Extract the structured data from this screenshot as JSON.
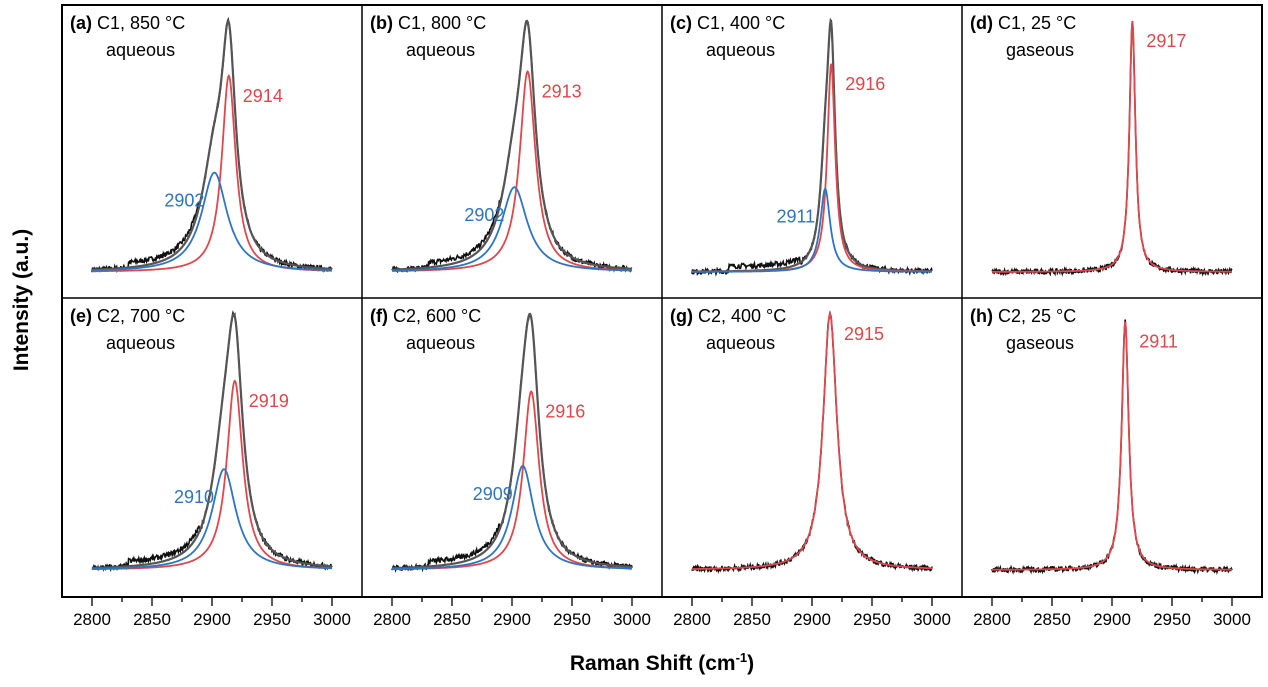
{
  "chart_data": [
    {
      "type": "line",
      "panel": "(a)",
      "title": "C1, 850 °C",
      "subtitle": "aqueous",
      "xlim": [
        2800,
        3000
      ],
      "components": [
        {
          "center": 2914,
          "label": "2914",
          "color": "#e0474c",
          "amplitude": 0.77,
          "fwhm": 14
        },
        {
          "center": 2902,
          "label": "2902",
          "color": "#2f74c0",
          "amplitude": 0.39,
          "fwhm": 26
        }
      ]
    },
    {
      "type": "line",
      "panel": "(b)",
      "title": "C1, 800 °C",
      "subtitle": "aqueous",
      "xlim": [
        2800,
        3000
      ],
      "components": [
        {
          "center": 2913,
          "label": "2913",
          "color": "#e0474c",
          "amplitude": 0.78,
          "fwhm": 16
        },
        {
          "center": 2902,
          "label": "2902",
          "color": "#2f74c0",
          "amplitude": 0.33,
          "fwhm": 26
        }
      ]
    },
    {
      "type": "line",
      "panel": "(c)",
      "title": "C1, 400 °C",
      "subtitle": "aqueous",
      "xlim": [
        2800,
        3000
      ],
      "components": [
        {
          "center": 2916,
          "label": "2916",
          "color": "#e0474c",
          "amplitude": 0.8,
          "fwhm": 8
        },
        {
          "center": 2911,
          "label": "2911",
          "color": "#2f74c0",
          "amplitude": 0.32,
          "fwhm": 10
        }
      ]
    },
    {
      "type": "line",
      "panel": "(d)",
      "title": "C1, 25 °C",
      "subtitle": "gaseous",
      "xlim": [
        2800,
        3000
      ],
      "components": [
        {
          "center": 2917,
          "label": "2917",
          "color": "#e0474c",
          "amplitude": 1.0,
          "fwhm": 6
        }
      ]
    },
    {
      "type": "line",
      "panel": "(e)",
      "title": "C2, 700 °C",
      "subtitle": "aqueous",
      "xlim": [
        2800,
        3000
      ],
      "components": [
        {
          "center": 2919,
          "label": "2919",
          "color": "#e0474c",
          "amplitude": 0.75,
          "fwhm": 16
        },
        {
          "center": 2910,
          "label": "2910",
          "color": "#2f74c0",
          "amplitude": 0.4,
          "fwhm": 24
        }
      ]
    },
    {
      "type": "line",
      "panel": "(f)",
      "title": "C2, 600 °C",
      "subtitle": "aqueous",
      "xlim": [
        2800,
        3000
      ],
      "components": [
        {
          "center": 2916,
          "label": "2916",
          "color": "#e0474c",
          "amplitude": 0.72,
          "fwhm": 16
        },
        {
          "center": 2909,
          "label": "2909",
          "color": "#2f74c0",
          "amplitude": 0.42,
          "fwhm": 22
        }
      ]
    },
    {
      "type": "line",
      "panel": "(g)",
      "title": "C2, 400 °C",
      "subtitle": "aqueous",
      "xlim": [
        2800,
        3000
      ],
      "components": [
        {
          "center": 2915,
          "label": "2915",
          "color": "#e0474c",
          "amplitude": 1.0,
          "fwhm": 14
        }
      ]
    },
    {
      "type": "line",
      "panel": "(h)",
      "title": "C2, 25 °C",
      "subtitle": "gaseous",
      "xlim": [
        2800,
        3000
      ],
      "components": [
        {
          "center": 2911,
          "label": "2911",
          "color": "#e0474c",
          "amplitude": 0.97,
          "fwhm": 7
        }
      ]
    }
  ],
  "x_ticks": [
    "2800",
    "2850",
    "2900",
    "2950",
    "3000"
  ],
  "xlabel": "Raman Shift (cm",
  "xlabel_sup": "-1",
  "xlabel_end": ")",
  "ylabel": "Intensity (a.u.)",
  "colors": {
    "data": "#111111",
    "fit_sum": "#555555"
  }
}
